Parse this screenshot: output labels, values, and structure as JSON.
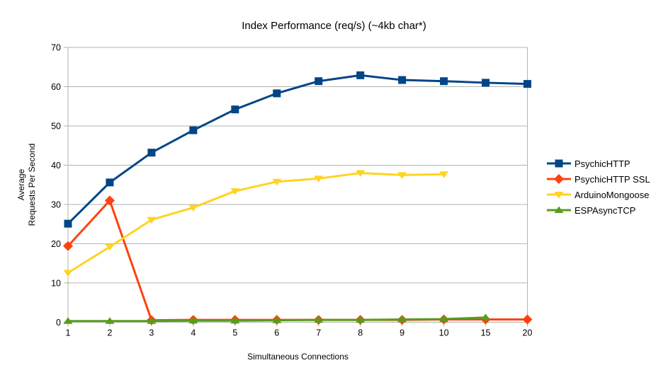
{
  "chart_data": {
    "type": "line",
    "title": "Index Performance (req/s) (~4kb char*)",
    "xlabel": "Simultaneous Connections",
    "ylabel_lines": [
      "Average",
      "Requests Per Second"
    ],
    "ylim": [
      0,
      70
    ],
    "y_ticks": [
      0,
      10,
      20,
      30,
      40,
      50,
      60,
      70
    ],
    "categories": [
      "1",
      "2",
      "3",
      "4",
      "5",
      "6",
      "7",
      "8",
      "9",
      "10",
      "15",
      "20"
    ],
    "grid": "horizontal-on",
    "legend_position": "right",
    "colors": {
      "grid": "#b3b3b3",
      "axis": "#b3b3b3",
      "text": "#000000"
    },
    "series": [
      {
        "name": "PsychicHTTP",
        "color": "#004586",
        "marker": "square",
        "values": [
          25.1,
          35.6,
          43.2,
          48.9,
          54.2,
          58.3,
          61.4,
          62.9,
          61.7,
          61.4,
          61.0,
          60.7
        ]
      },
      {
        "name": "PsychicHTTP SSL",
        "color": "#FF420E",
        "marker": "diamond",
        "values": [
          19.4,
          31.0,
          0.5,
          0.6,
          0.6,
          0.6,
          0.6,
          0.6,
          0.6,
          0.7,
          0.7,
          0.7
        ]
      },
      {
        "name": "ArduinoMongoose",
        "color": "#FFD320",
        "marker": "triangle-down",
        "values": [
          12.6,
          19.2,
          26.1,
          29.2,
          33.4,
          35.8,
          36.6,
          38.0,
          37.5,
          37.7,
          null,
          null
        ]
      },
      {
        "name": "ESPAsyncTCP",
        "color": "#579D1C",
        "marker": "triangle-up",
        "values": [
          0.3,
          0.3,
          0.3,
          0.4,
          0.4,
          0.5,
          0.6,
          0.6,
          0.7,
          0.8,
          1.2,
          null
        ]
      }
    ]
  }
}
